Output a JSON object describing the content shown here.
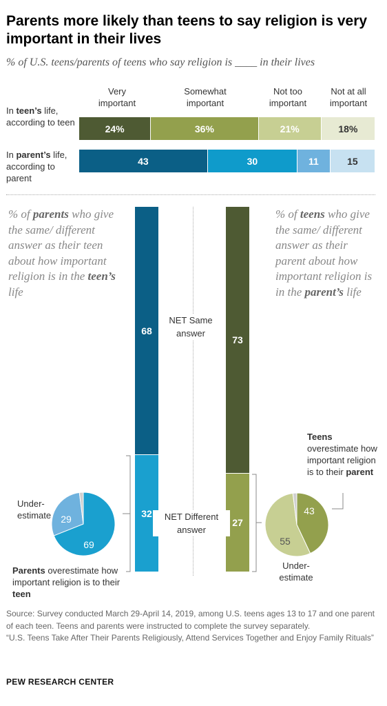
{
  "title": "Parents more likely than teens to say religion is very important in their lives",
  "subtitle": "% of U.S. teens/parents of teens who say religion is ____ in their lives",
  "header": {
    "col1": "Very important",
    "col2": "Somewhat important",
    "col3": "Not too important",
    "col4": "Not at all important"
  },
  "rows": {
    "teen_label_a": "In ",
    "teen_label_b": "teen’s",
    "teen_label_c": " life, according to teen",
    "parent_label_a": "In ",
    "parent_label_b": "parent’s",
    "parent_label_c": " life, according to parent"
  },
  "left_note": {
    "a": "% of ",
    "b": "parents",
    "c": " who give the same/ different answer as their teen about how important religion is in the ",
    "d": "teen’s",
    "e": " life"
  },
  "right_note": {
    "a": "% of ",
    "b": "teens",
    "c": " who give the same/ different answer as their parent about how important religion is in the ",
    "d": "parent’s",
    "e": " life"
  },
  "middle": {
    "same": "NET Same answer",
    "different": "NET Different answer"
  },
  "left_pie_notes": {
    "under": "Under-\nestimate",
    "over_a": "Parents",
    "over_b": " overestimate how important religion is to their ",
    "over_c": "teen"
  },
  "right_pie_notes": {
    "over_a": "Teens",
    "over_b": " overestimate how important religion is to their ",
    "over_c": "parent",
    "under": "Under-\nestimate"
  },
  "chart_data": [
    {
      "type": "bar",
      "orientation": "horizontal",
      "stacked": true,
      "categories": [
        "In teen’s life, according to teen",
        "In parent’s life, according to parent"
      ],
      "series": [
        {
          "name": "Very important",
          "values": [
            24,
            43
          ],
          "labels": [
            "24%",
            "43"
          ],
          "colors": [
            "#4e5a33",
            "#0b5f86"
          ]
        },
        {
          "name": "Somewhat important",
          "values": [
            36,
            30
          ],
          "labels": [
            "36%",
            "30"
          ],
          "colors": [
            "#93a04d",
            "#0f9bcb"
          ]
        },
        {
          "name": "Not too important",
          "values": [
            21,
            11
          ],
          "labels": [
            "21%",
            "11"
          ],
          "colors": [
            "#c7cf93",
            "#6fb2de"
          ]
        },
        {
          "name": "Not at all important",
          "values": [
            18,
            15
          ],
          "labels": [
            "18%",
            "15"
          ],
          "colors": [
            "#e7ead3",
            "#c7e1f1"
          ]
        }
      ]
    },
    {
      "type": "bar",
      "orientation": "vertical",
      "stacked": true,
      "categories": [
        "Parents",
        "Teens"
      ],
      "series": [
        {
          "name": "NET Same answer",
          "values": [
            68,
            73
          ],
          "colors": [
            "#0b5f86",
            "#4e5a33"
          ]
        },
        {
          "name": "NET Different answer",
          "values": [
            32,
            27
          ],
          "colors": [
            "#1aa0cf",
            "#93a04d"
          ]
        }
      ]
    },
    {
      "type": "pie",
      "slices": [
        {
          "label": "Overestimate",
          "value": 69,
          "color": "#1aa0cf",
          "text": "69"
        },
        {
          "label": "Underestimate",
          "value": 29,
          "color": "#6fb2de",
          "text": "29"
        },
        {
          "label": "Same/other",
          "value": 2,
          "color": "#cfcfcf",
          "text": ""
        }
      ]
    },
    {
      "type": "pie",
      "slices": [
        {
          "label": "Overestimate",
          "value": 43,
          "color": "#93a04d",
          "text": "43"
        },
        {
          "label": "Underestimate",
          "value": 55,
          "color": "#c7cf93",
          "text": "55"
        },
        {
          "label": "Same/other",
          "value": 2,
          "color": "#cfcfcf",
          "text": ""
        }
      ]
    }
  ],
  "source": {
    "line1": "Source: Survey conducted March 29-April 14, 2019, among U.S. teens ages 13 to 17 and one parent of each teen. Teens and parents were instructed to complete the survey separately.",
    "line2": "“U.S. Teens Take After Their Parents Religiously, Attend Services Together and Enjoy Family Rituals”"
  },
  "brand": "PEW RESEARCH CENTER"
}
